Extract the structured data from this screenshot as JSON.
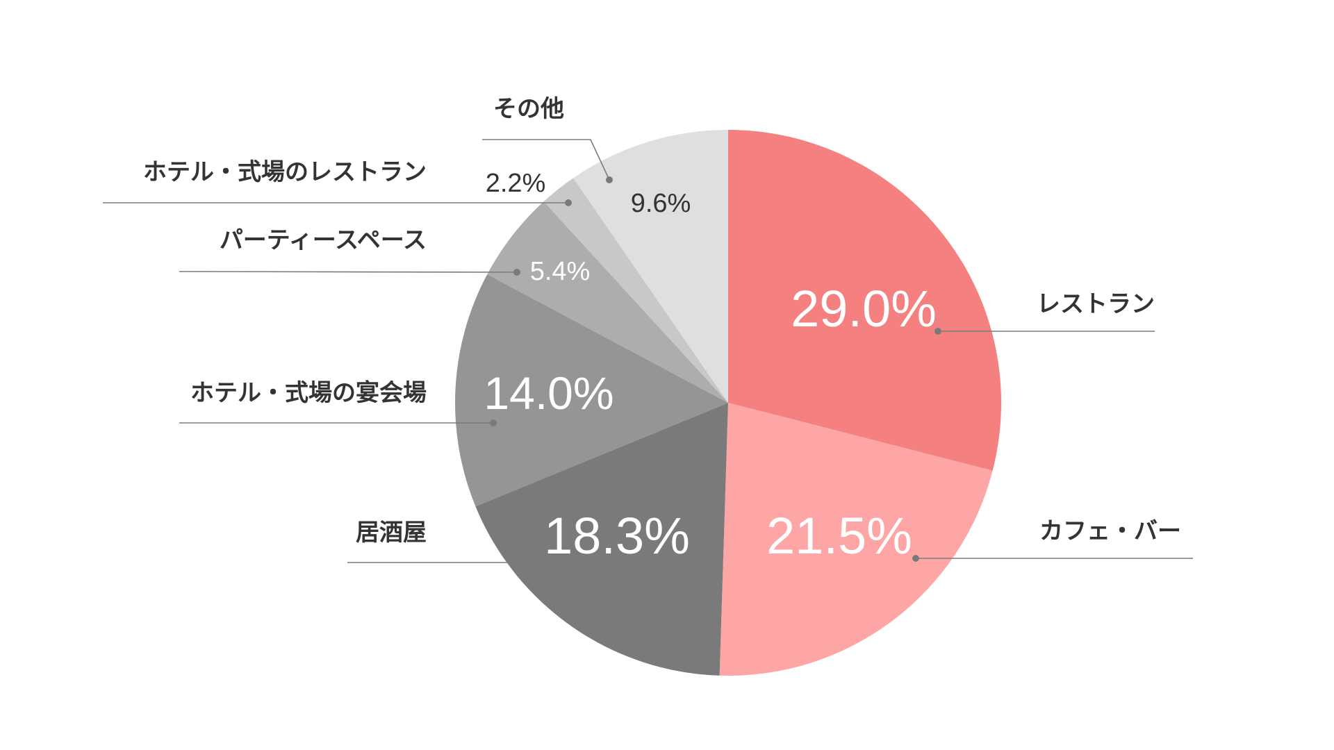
{
  "chart_data": {
    "type": "pie",
    "title": "",
    "start_angle_deg": 0,
    "direction": "clockwise",
    "slices": [
      {
        "label": "レストラン",
        "value": 29.0,
        "value_label": "29.0%",
        "color": "#f48080",
        "label_color": "#ffffff"
      },
      {
        "label": "カフェ・バー",
        "value": 21.5,
        "value_label": "21.5%",
        "color": "#fea6a6",
        "label_color": "#ffffff"
      },
      {
        "label": "居酒屋",
        "value": 18.3,
        "value_label": "18.3%",
        "color": "#7b7a7b",
        "label_color": "#ffffff"
      },
      {
        "label": "ホテル・式場の宴会場",
        "value": 14.0,
        "value_label": "14.0%",
        "color": "#959595",
        "label_color": "#ffffff"
      },
      {
        "label": "パーティースペース",
        "value": 5.4,
        "value_label": "5.4%",
        "color": "#adadad",
        "label_color": "#ffffff"
      },
      {
        "label": "ホテル・式場のレストラン",
        "value": 2.2,
        "value_label": "2.2%",
        "color": "#c8c8c9",
        "label_color": "#333333"
      },
      {
        "label": "その他",
        "value": 9.6,
        "value_label": "9.6%",
        "color": "#dfdfe1",
        "label_color": "#333333"
      }
    ],
    "leader_color": "#7b7a7b"
  }
}
